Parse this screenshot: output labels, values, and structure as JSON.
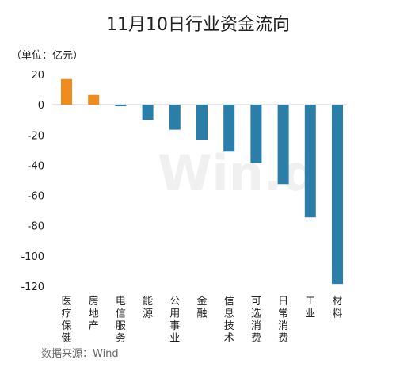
{
  "chart_data": {
    "type": "bar",
    "title": "11月10日行业资金流向",
    "unit_label": "（单位：亿元）",
    "source": "数据来源：Wind",
    "watermark": "Win.d",
    "categories": [
      "医疗保健",
      "房地产",
      "电信服务",
      "能源",
      "公用事业",
      "金融",
      "信息技术",
      "可选消费",
      "日常消费",
      "工业",
      "材料"
    ],
    "values": [
      17,
      6.5,
      -1,
      -10,
      -16.5,
      -23,
      -31,
      -38.5,
      -52.5,
      -74.5,
      -118.5
    ],
    "ylim": [
      -120,
      20
    ],
    "yticks": [
      "20",
      "0",
      "-20",
      "-40",
      "-60",
      "-80",
      "-100",
      "-120"
    ],
    "grid": false,
    "colors": {
      "positive": "#f08c1e",
      "negative": "#2a7ea8",
      "axis": "#bbbbbb"
    }
  }
}
